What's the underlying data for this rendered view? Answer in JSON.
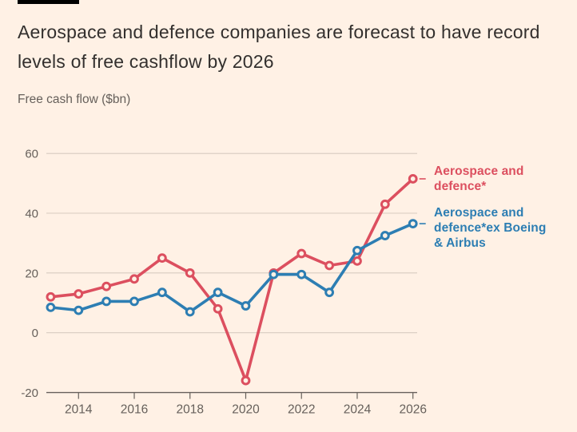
{
  "page": {
    "background_color": "#fff1e5"
  },
  "header": {
    "top_bar_color": "#000000",
    "title": "Aerospace and defence companies are forecast to have record levels of free cashflow by 2026",
    "subtitle": "Free cash flow ($bn)"
  },
  "chart_data": {
    "type": "line",
    "title": "Aerospace and defence companies are forecast to have record levels of free cashflow by 2026",
    "ylabel": "Free cash flow ($bn)",
    "x": [
      2013,
      2014,
      2015,
      2016,
      2017,
      2018,
      2019,
      2020,
      2021,
      2022,
      2023,
      2024,
      2025,
      2026
    ],
    "series": [
      {
        "name": "Aerospace and defence*",
        "color": "#dc4f5f",
        "values": [
          12,
          13,
          15.5,
          18,
          25,
          20,
          8,
          -16,
          20,
          26.5,
          22.5,
          24,
          43,
          51.5
        ]
      },
      {
        "name": "Aerospace and defence*ex Boeing & Airbus",
        "color": "#2d7eb3",
        "values": [
          8.5,
          7.5,
          10.5,
          10.5,
          13.5,
          7,
          13.5,
          9,
          19.5,
          19.5,
          13.5,
          27.5,
          32.5,
          36.5
        ]
      }
    ],
    "legend": [
      {
        "lines": [
          "Aerospace and",
          "defence*"
        ]
      },
      {
        "lines": [
          "Aerospace and",
          "defence*ex Boeing",
          "& Airbus"
        ]
      }
    ],
    "legend_position": "right",
    "ylim": [
      -20,
      60
    ],
    "yticks": [
      -20,
      0,
      20,
      40,
      60
    ],
    "ytick_labels": [
      "-20",
      "0",
      "20",
      "40",
      "60"
    ],
    "xticks": [
      2014,
      2016,
      2018,
      2020,
      2022,
      2024,
      2026
    ],
    "xtick_labels": [
      "2014",
      "2016",
      "2018",
      "2020",
      "2022",
      "2024",
      "2026"
    ],
    "grid": "horizontal",
    "marker": "open-circle",
    "grid_color": "#d7cbc0",
    "axis_color": "#66605b",
    "tick_label_color": "#66605b",
    "marker_fill": "#fff1e5"
  }
}
